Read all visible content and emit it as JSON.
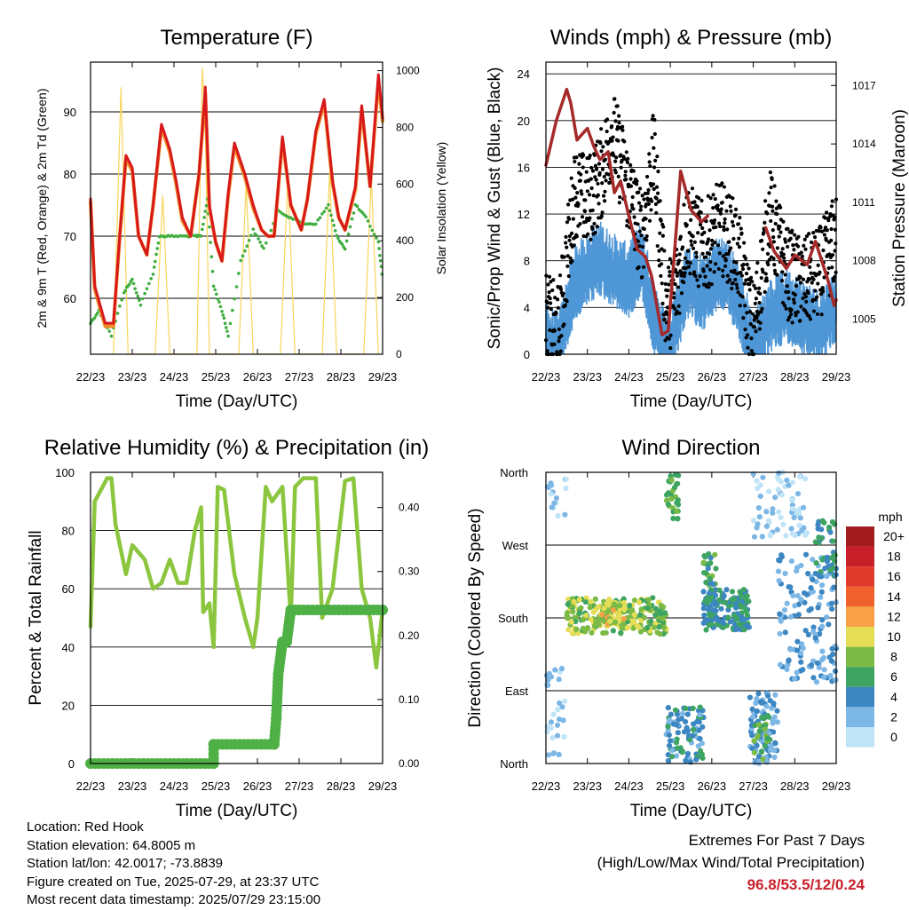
{
  "chart_data": [
    {
      "type": "line",
      "title": "Temperature (F)",
      "xlabel": "Time (Day/UTC)",
      "ylabel": "2m & 9m T (Red, Orange) & 2m Td (Green)",
      "y2label": "Solar Insolation (Yellow)",
      "x_ticks": [
        "22/23",
        "23/23",
        "24/23",
        "25/23",
        "26/23",
        "27/23",
        "28/23",
        "29/23"
      ],
      "ylim": [
        51,
        98
      ],
      "y_ticks": [
        60,
        70,
        80,
        90
      ],
      "y2lim": [
        0,
        1030
      ],
      "y2_ticks": [
        0,
        200,
        400,
        600,
        800,
        1000
      ],
      "series": [
        {
          "color": "#d7191c",
          "x": [
            0,
            0.1,
            0.35,
            0.55,
            0.7,
            0.85,
            1.0,
            1.15,
            1.35,
            1.5,
            1.7,
            1.9,
            2.05,
            2.2,
            2.4,
            2.6,
            2.75,
            2.85,
            3.0,
            3.15,
            3.3,
            3.45,
            3.7,
            3.9,
            4.1,
            4.25,
            4.4,
            4.6,
            4.8,
            5.05,
            5.2,
            5.4,
            5.6,
            5.8,
            5.95,
            6.1,
            6.35,
            6.5,
            6.7,
            6.9,
            7.0
          ],
          "y": [
            76,
            62,
            56,
            56,
            70,
            83,
            81,
            70,
            67,
            75,
            88,
            84,
            79,
            73,
            70,
            80,
            94,
            75,
            69,
            66,
            77,
            85,
            80,
            75,
            71,
            70,
            70,
            86,
            75,
            71,
            76,
            87,
            92,
            79,
            73,
            71,
            78,
            91,
            78,
            96,
            89
          ]
        },
        {
          "color": "#f08a24",
          "x": [
            0,
            0.1,
            0.35,
            0.55,
            0.7,
            0.85,
            1.0,
            1.15,
            1.35,
            1.5,
            1.7,
            1.9,
            2.05,
            2.2,
            2.4,
            2.6,
            2.75,
            2.85,
            3.0,
            3.15,
            3.3,
            3.45,
            3.7,
            3.9,
            4.1,
            4.25,
            4.4,
            4.6,
            4.8,
            5.05,
            5.2,
            5.4,
            5.6,
            5.8,
            5.95,
            6.1,
            6.35,
            6.5,
            6.7,
            6.9,
            7.0
          ],
          "y": [
            75.5,
            61.5,
            55.5,
            55.5,
            70,
            82.5,
            80.5,
            70,
            67,
            75,
            87.5,
            83.5,
            78.5,
            72.5,
            70,
            80,
            93,
            74.5,
            69,
            66,
            76.5,
            84.5,
            79.5,
            74.5,
            71,
            70,
            70,
            85.5,
            75,
            71,
            76,
            86.5,
            91.5,
            78.5,
            73,
            71,
            77.5,
            90.5,
            78,
            95,
            88.5
          ]
        },
        {
          "color": "#3fae3f",
          "x": [
            0,
            0.2,
            0.5,
            0.8,
            1.0,
            1.2,
            1.5,
            1.65,
            1.9,
            2.2,
            2.5,
            2.65,
            2.8,
            2.95,
            3.15,
            3.3,
            3.6,
            3.9,
            4.15,
            4.5,
            4.8,
            5.1,
            5.4,
            5.7,
            5.9,
            6.1,
            6.35,
            6.6,
            6.9,
            7.0
          ],
          "y": [
            56,
            58,
            54,
            61,
            63,
            59,
            64,
            70,
            70,
            70,
            70,
            70,
            76,
            62,
            58,
            54,
            66,
            71,
            68,
            74,
            73,
            72,
            72,
            75,
            70,
            68,
            75,
            73,
            69,
            63
          ]
        },
        {
          "color": "#f7d55b",
          "x": [
            0.55,
            0.73,
            0.9,
            1.55,
            1.73,
            1.9,
            2.55,
            2.68,
            2.75,
            2.85,
            3.55,
            3.73,
            3.9,
            4.55,
            4.73,
            4.9,
            5.55,
            5.73,
            5.9,
            6.55,
            6.73,
            6.9
          ],
          "y": [
            0,
            940,
            0,
            0,
            560,
            0,
            0,
            1010,
            800,
            0,
            0,
            600,
            0,
            0,
            620,
            0,
            0,
            640,
            0,
            0,
            620,
            0
          ]
        }
      ]
    },
    {
      "type": "line",
      "title": "Winds (mph) & Pressure (mb)",
      "xlabel": "Time (Day/UTC)",
      "ylabel": "Sonic/Prop Wind & Gust (Blue, Black)",
      "y2label": "Station Pressure (Maroon)",
      "x_ticks": [
        "22/23",
        "23/23",
        "24/23",
        "25/23",
        "26/23",
        "27/23",
        "28/23",
        "29/23"
      ],
      "ylim": [
        0,
        25
      ],
      "y_ticks": [
        0,
        4,
        8,
        12,
        16,
        20,
        24
      ],
      "y2lim": [
        1003.2,
        1018.2
      ],
      "y2_ticks": [
        1005,
        1008,
        1011,
        1014,
        1017
      ],
      "series": [
        {
          "color": "#4f97d6",
          "x": [
            0,
            0.3,
            0.7,
            1.0,
            1.3,
            1.6,
            2.0,
            2.3,
            2.6,
            2.9,
            3.1,
            3.4,
            3.8,
            4.2,
            4.6,
            5.0,
            5.4,
            5.8,
            6.2,
            6.6,
            7.0
          ],
          "y": [
            2,
            1,
            7,
            8,
            9,
            8,
            7,
            9,
            4,
            1,
            3,
            7,
            6,
            8,
            6,
            1,
            4,
            5,
            4,
            3,
            5
          ]
        },
        {
          "color": "#000000",
          "x": [
            0,
            0.3,
            0.7,
            1.0,
            1.3,
            1.6,
            2.0,
            2.3,
            2.6,
            2.9,
            3.1,
            3.4,
            3.8,
            4.2,
            4.6,
            5.0,
            5.4,
            5.8,
            6.2,
            6.6,
            7.0
          ],
          "y": [
            3,
            2,
            14,
            13,
            15,
            19,
            14,
            10,
            17,
            4,
            5,
            11,
            9,
            11,
            9,
            2,
            12,
            7,
            6,
            7,
            10
          ]
        },
        {
          "color": "#a52a2a",
          "x": [
            0,
            0.25,
            0.5,
            0.6,
            0.75,
            1.0,
            1.15,
            1.3,
            1.5,
            1.65,
            1.8,
            2.0,
            2.2,
            2.4,
            2.55,
            2.7,
            2.8,
            2.95,
            3.1,
            3.25,
            3.5,
            3.75,
            3.9
          ],
          "y2": [
            1012.9,
            1015.2,
            1016.8,
            1016.1,
            1014.2,
            1014.8,
            1013.9,
            1013.2,
            1013.6,
            1011.5,
            1012.1,
            1010.3,
            1008.6,
            1008.2,
            1007.2,
            1005.4,
            1004.2,
            1004.4,
            1008.4,
            1012.6,
            1010.6,
            1010.0,
            1010.3
          ]
        },
        {
          "color": "#a52a2a",
          "x": [
            5.3,
            5.5,
            5.8,
            6.0,
            6.3,
            6.5,
            6.65,
            6.8,
            6.95,
            7.0
          ],
          "y2": [
            1009.7,
            1008.5,
            1007.6,
            1008.3,
            1007.8,
            1009.0,
            1008.0,
            1007.0,
            1005.7,
            1006.0
          ]
        }
      ]
    },
    {
      "type": "line",
      "title": "Relative Humidity (%) & Precipitation (in)",
      "xlabel": "Time (Day/UTC)",
      "ylabel": "Percent & Total Rainfall",
      "x_ticks": [
        "22/23",
        "23/23",
        "24/23",
        "25/23",
        "26/23",
        "27/23",
        "28/23",
        "29/23"
      ],
      "ylim": [
        0,
        100
      ],
      "y_ticks": [
        0,
        20,
        40,
        60,
        80,
        100
      ],
      "y2lim": [
        0,
        0.455
      ],
      "y2_ticks": [
        "0.00",
        "0.10",
        "0.20",
        "0.30",
        "0.40"
      ],
      "series": [
        {
          "color": "#8cc63f",
          "x": [
            0,
            0.1,
            0.4,
            0.5,
            0.6,
            0.85,
            1.0,
            1.3,
            1.5,
            1.7,
            1.9,
            2.1,
            2.3,
            2.5,
            2.65,
            2.7,
            2.85,
            2.95,
            3.05,
            3.2,
            3.45,
            3.7,
            3.9,
            4.0,
            4.2,
            4.35,
            4.6,
            4.8,
            4.9,
            5.1,
            5.4,
            5.55,
            5.8,
            6.1,
            6.3,
            6.5,
            6.7,
            6.85,
            7.0
          ],
          "y": [
            47,
            90,
            98,
            98,
            82,
            65,
            75,
            70,
            60,
            62,
            70,
            62,
            62,
            80,
            88,
            52,
            55,
            40,
            95,
            94,
            65,
            50,
            40,
            50,
            95,
            90,
            95,
            50,
            95,
            98,
            98,
            50,
            60,
            97,
            98,
            60,
            50,
            33,
            53
          ]
        },
        {
          "color": "#4fb045",
          "x": [
            0,
            2.95,
            2.95,
            4.4,
            4.45,
            4.5,
            4.6,
            4.7,
            4.8,
            5.0,
            7.0
          ],
          "y2": [
            0,
            0,
            0.03,
            0.03,
            0.07,
            0.14,
            0.19,
            0.19,
            0.24,
            0.24,
            0.24
          ]
        }
      ]
    },
    {
      "type": "scatter",
      "title": "Wind Direction",
      "xlabel": "Time (Day/UTC)",
      "ylabel": "Direction (Colored By Speed)",
      "x_ticks": [
        "22/23",
        "23/23",
        "24/23",
        "25/23",
        "26/23",
        "27/23",
        "28/23",
        "29/23"
      ],
      "y_ticks": [
        "North",
        "East",
        "South",
        "West",
        "North"
      ],
      "colorbar": {
        "label": "mph",
        "levels": [
          "20+",
          "18",
          "16",
          "14",
          "12",
          "10",
          "8",
          "6",
          "4",
          "2",
          "0"
        ],
        "colors": [
          "#a11b1f",
          "#c8202b",
          "#e03a2a",
          "#f0622d",
          "#f7a046",
          "#e4dd55",
          "#7cba46",
          "#3ea462",
          "#3c86c2",
          "#7db7e6",
          "#bfe3f7"
        ]
      },
      "clusters": [
        {
          "x": [
            0,
            0.5
          ],
          "dir": [
            0,
            120
          ],
          "speed": 1,
          "n": 30
        },
        {
          "x": [
            0,
            0.5
          ],
          "dir": [
            300,
            360
          ],
          "speed": 1,
          "n": 16
        },
        {
          "x": [
            0.5,
            2.9
          ],
          "dir": [
            160,
            205
          ],
          "speed": 8,
          "n": 220
        },
        {
          "x": [
            1.3,
            1.9
          ],
          "dir": [
            170,
            200
          ],
          "speed": 10,
          "n": 40
        },
        {
          "x": [
            2.9,
            3.8
          ],
          "dir": [
            0,
            70
          ],
          "speed": 4,
          "n": 90
        },
        {
          "x": [
            2.9,
            3.2
          ],
          "dir": [
            300,
            360
          ],
          "speed": 7,
          "n": 30
        },
        {
          "x": [
            3.8,
            4.9
          ],
          "dir": [
            165,
            215
          ],
          "speed": 5,
          "n": 150
        },
        {
          "x": [
            3.8,
            4.1
          ],
          "dir": [
            220,
            260
          ],
          "speed": 6,
          "n": 25
        },
        {
          "x": [
            4.9,
            5.6
          ],
          "dir": [
            0,
            90
          ],
          "speed": 3,
          "n": 90
        },
        {
          "x": [
            5.0,
            5.4
          ],
          "dir": [
            0,
            60
          ],
          "speed": 7,
          "n": 25
        },
        {
          "x": [
            5.0,
            6.3
          ],
          "dir": [
            280,
            360
          ],
          "speed": 1,
          "n": 70
        },
        {
          "x": [
            5.6,
            7.0
          ],
          "dir": [
            100,
            260
          ],
          "speed": 3,
          "n": 140
        },
        {
          "x": [
            6.5,
            7.0
          ],
          "dir": [
            230,
            300
          ],
          "speed": 5,
          "n": 40
        }
      ]
    }
  ],
  "station_info": {
    "location": "Location: Red Hook",
    "elevation": "Station elevation: 64.8005 m",
    "latlon": "Station lat/lon: 42.0017; -73.8839",
    "created": "Figure created on Tue, 2025-07-29, at 23:37 UTC",
    "latest": "Most recent data timestamp: 2025/07/29 23:15:00"
  },
  "extremes": {
    "heading": "Extremes For Past 7 Days",
    "subheading": "(High/Low/Max Wind/Total Precipitation)",
    "values": "96.8/53.5/12/0.24"
  }
}
